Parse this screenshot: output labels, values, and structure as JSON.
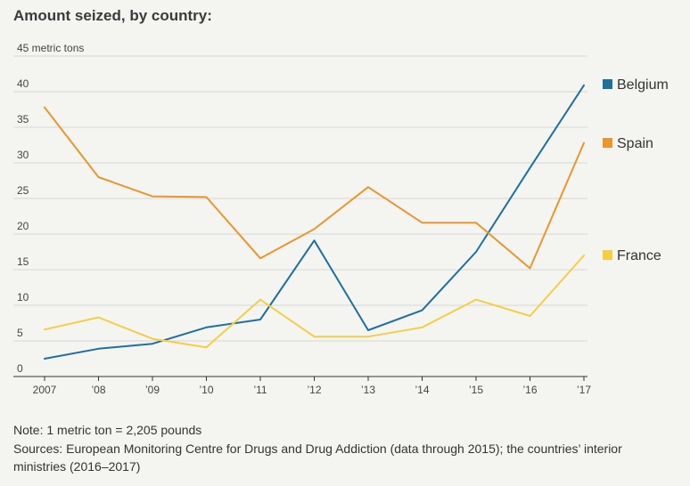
{
  "title": "Amount seized, by country:",
  "note": "Note: 1 metric ton = 2,205 pounds",
  "sources": "Sources: European Monitoring Centre for Drugs and Drug Addiction (data through 2015); the countries’ interior ministries (2016–2017)",
  "colors": {
    "Belgium": "#1f6f9f",
    "Spain": "#e8962e",
    "France": "#f2cf45"
  },
  "chart_data": {
    "type": "line",
    "title": "Amount seized, by country:",
    "xlabel": "",
    "ylabel": "",
    "x_tick_labels": [
      "2007",
      "’08",
      "’09",
      "’10",
      "’11",
      "’12",
      "’13",
      "’14",
      "’15",
      "’16",
      "’17"
    ],
    "x": [
      2007,
      2008,
      2009,
      2010,
      2011,
      2012,
      2013,
      2014,
      2015,
      2016,
      2017
    ],
    "y_ticks": [
      0,
      5,
      10,
      15,
      20,
      25,
      30,
      35,
      40,
      45
    ],
    "y_tick_labels": [
      "0",
      "5",
      "10",
      "15",
      "20",
      "25",
      "30",
      "35",
      "40",
      "45 metric tons"
    ],
    "ylim": [
      0,
      45
    ],
    "grid": true,
    "legend": "right, labels beside line ends",
    "series": [
      {
        "name": "Belgium",
        "values": [
          2.5,
          3.9,
          4.6,
          6.9,
          8.0,
          19.1,
          6.5,
          9.3,
          17.5,
          29.3,
          40.9
        ]
      },
      {
        "name": "Spain",
        "values": [
          37.8,
          28.0,
          25.3,
          25.2,
          16.6,
          20.7,
          26.6,
          21.6,
          21.6,
          15.2,
          32.8
        ]
      },
      {
        "name": "France",
        "values": [
          6.6,
          8.3,
          5.3,
          4.1,
          10.8,
          5.6,
          5.6,
          6.9,
          10.8,
          8.5,
          17.0
        ]
      }
    ]
  }
}
